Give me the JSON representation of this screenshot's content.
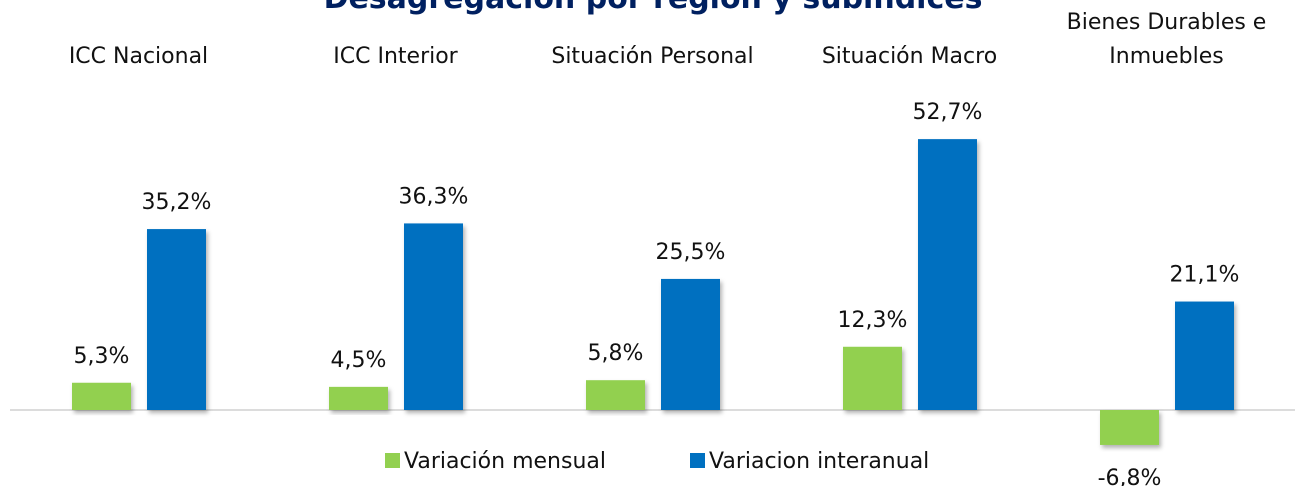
{
  "chart_data": {
    "type": "bar",
    "title": "Desagregación por región y subíndices",
    "categories": [
      "ICC Nacional",
      "ICC Interior",
      "Situación Personal",
      "Situación Macro",
      "Bienes Durables e Inmuebles"
    ],
    "series": [
      {
        "name": "Variación mensual",
        "color": "#92d050",
        "values": [
          5.3,
          4.5,
          5.8,
          12.3,
          -6.8
        ],
        "value_labels": [
          "5,3%",
          "4,5%",
          "5,8%",
          "12,3%",
          "-6,8%"
        ]
      },
      {
        "name": "Variacion interanual",
        "color": "#0070c0",
        "values": [
          35.2,
          36.3,
          25.5,
          52.7,
          21.1
        ],
        "value_labels": [
          "35,2%",
          "36,3%",
          "25,5%",
          "52,7%",
          "21,1%"
        ]
      }
    ]
  }
}
